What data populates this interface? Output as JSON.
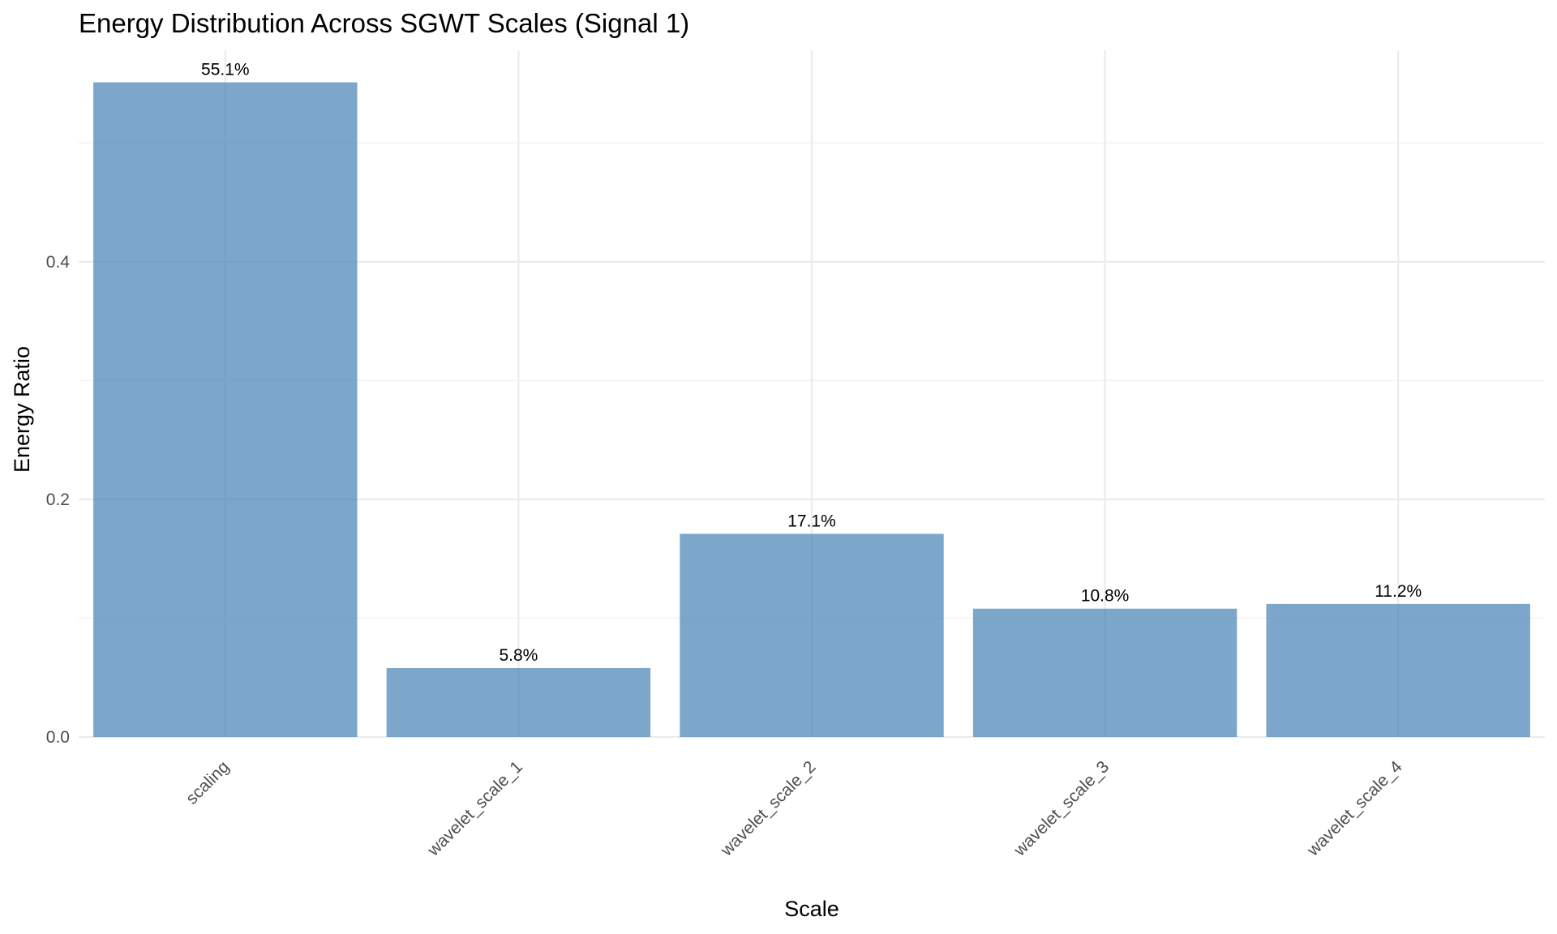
{
  "chart_data": {
    "type": "bar",
    "title": "Energy Distribution Across SGWT Scales (Signal 1)",
    "xlabel": "Scale",
    "ylabel": "Energy Ratio",
    "categories": [
      "scaling",
      "wavelet_scale_1",
      "wavelet_scale_2",
      "wavelet_scale_3",
      "wavelet_scale_4"
    ],
    "values": [
      0.551,
      0.058,
      0.171,
      0.108,
      0.112
    ],
    "value_labels": [
      "55.1%",
      "5.8%",
      "17.1%",
      "10.8%",
      "11.2%"
    ],
    "ylim": [
      0,
      0.578
    ],
    "yticks": [
      0.0,
      0.2,
      0.4
    ],
    "ytick_labels": [
      "0.0",
      "0.2",
      "0.4"
    ],
    "grid": true,
    "bar_color": "#4682b4",
    "bar_opacity": 0.7
  }
}
